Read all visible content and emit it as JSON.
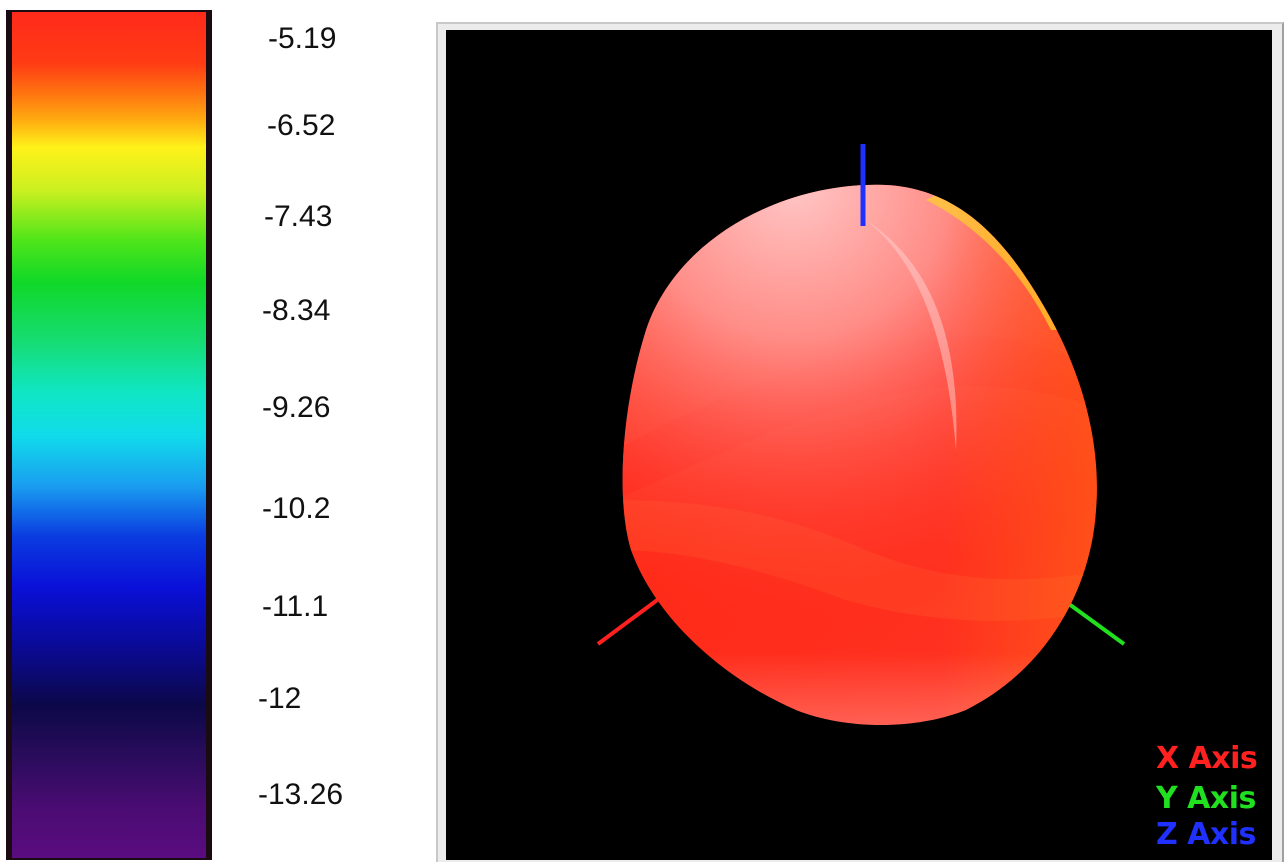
{
  "colorbar": {
    "ticks": [
      "-5.19",
      "-6.52",
      "-7.43",
      "-8.34",
      "-9.26",
      "-10.2",
      "-11.1",
      "-12",
      "-13.26"
    ]
  },
  "legend": {
    "x_axis": {
      "label": "X Axis",
      "color": "#ff2020"
    },
    "y_axis": {
      "label": "Y Axis",
      "color": "#20e020"
    },
    "z_axis": {
      "label": "Z Axis",
      "color": "#2030ff"
    }
  },
  "colors": {
    "surface": "#ff2a1a",
    "background": "#000000"
  }
}
